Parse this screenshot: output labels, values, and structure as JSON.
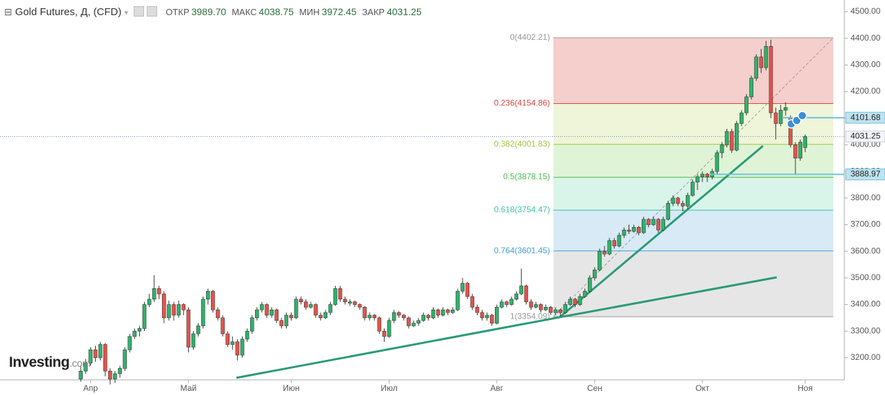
{
  "header": {
    "title": "Gold Futures, Д, (CFD)",
    "ohlc": [
      {
        "name": "ОТКР",
        "value": "3989.70"
      },
      {
        "name": "МАКС",
        "value": "4038.75"
      },
      {
        "name": "МИН",
        "value": "3972.45"
      },
      {
        "name": "ЗАКР",
        "value": "4031.25"
      }
    ]
  },
  "watermark": {
    "brand": "Investing",
    "suffix": ".com"
  },
  "chart_data": {
    "type": "candlestick",
    "ylim": [
      3117,
      4544
    ],
    "xlim": [
      -16.5,
      156
    ],
    "yticks": [
      {
        "value": 3200,
        "label": "3200.00"
      },
      {
        "value": 3300,
        "label": "3300.00"
      },
      {
        "value": 3400,
        "label": "3400.00"
      },
      {
        "value": 3500,
        "label": "3500.00"
      },
      {
        "value": 3600,
        "label": "3600.00"
      },
      {
        "value": 3700,
        "label": "3700.00"
      },
      {
        "value": 3800,
        "label": "3800.00"
      },
      {
        "value": 3900,
        "label": "3900.00"
      },
      {
        "value": 4000,
        "label": "4000.00"
      },
      {
        "value": 4100,
        "label": "4100.00"
      },
      {
        "value": 4200,
        "label": "4200.00"
      },
      {
        "value": 4300,
        "label": "4300.00"
      },
      {
        "value": 4400,
        "label": "4400.00"
      },
      {
        "value": 4500,
        "label": "4500.00"
      }
    ],
    "xticks": [
      {
        "value": 2,
        "label": "Апр"
      },
      {
        "value": 22,
        "label": "Май"
      },
      {
        "value": 43,
        "label": "Июн"
      },
      {
        "value": 63,
        "label": "Июл"
      },
      {
        "value": 85,
        "label": "Авг"
      },
      {
        "value": 105,
        "label": "Сен"
      },
      {
        "value": 127,
        "label": "Окт"
      },
      {
        "value": 148,
        "label": "Ноя"
      }
    ],
    "up_color": "#2fb36b",
    "down_color": "#e5534b",
    "candles": [
      [
        3120,
        3170,
        3110,
        3150
      ],
      [
        3150,
        3195,
        3140,
        3180
      ],
      [
        3180,
        3240,
        3170,
        3230
      ],
      [
        3230,
        3245,
        3185,
        3200
      ],
      [
        3200,
        3260,
        3190,
        3250
      ],
      [
        3250,
        3255,
        3130,
        3150
      ],
      [
        3150,
        3160,
        3100,
        3120
      ],
      [
        3120,
        3150,
        3105,
        3140
      ],
      [
        3140,
        3170,
        3125,
        3160
      ],
      [
        3160,
        3240,
        3150,
        3230
      ],
      [
        3230,
        3290,
        3220,
        3280
      ],
      [
        3280,
        3310,
        3270,
        3300
      ],
      [
        3300,
        3320,
        3280,
        3310
      ],
      [
        3310,
        3410,
        3300,
        3400
      ],
      [
        3400,
        3440,
        3390,
        3420
      ],
      [
        3420,
        3510,
        3410,
        3460
      ],
      [
        3460,
        3470,
        3420,
        3440
      ],
      [
        3440,
        3450,
        3330,
        3350
      ],
      [
        3350,
        3415,
        3340,
        3400
      ],
      [
        3400,
        3410,
        3340,
        3360
      ],
      [
        3360,
        3415,
        3350,
        3400
      ],
      [
        3400,
        3405,
        3360,
        3380
      ],
      [
        3380,
        3390,
        3220,
        3240
      ],
      [
        3240,
        3300,
        3230,
        3290
      ],
      [
        3290,
        3330,
        3280,
        3320
      ],
      [
        3320,
        3430,
        3310,
        3420
      ],
      [
        3420,
        3460,
        3400,
        3450
      ],
      [
        3450,
        3455,
        3370,
        3380
      ],
      [
        3380,
        3390,
        3340,
        3350
      ],
      [
        3350,
        3360,
        3280,
        3290
      ],
      [
        3290,
        3300,
        3240,
        3250
      ],
      [
        3250,
        3280,
        3230,
        3260
      ],
      [
        3260,
        3270,
        3190,
        3210
      ],
      [
        3210,
        3280,
        3200,
        3270
      ],
      [
        3270,
        3310,
        3260,
        3300
      ],
      [
        3300,
        3360,
        3290,
        3350
      ],
      [
        3350,
        3390,
        3340,
        3380
      ],
      [
        3380,
        3410,
        3370,
        3400
      ],
      [
        3400,
        3405,
        3350,
        3360
      ],
      [
        3360,
        3390,
        3350,
        3380
      ],
      [
        3380,
        3385,
        3330,
        3340
      ],
      [
        3340,
        3350,
        3310,
        3320
      ],
      [
        3320,
        3370,
        3310,
        3360
      ],
      [
        3360,
        3370,
        3340,
        3350
      ],
      [
        3350,
        3430,
        3345,
        3420
      ],
      [
        3420,
        3430,
        3400,
        3410
      ],
      [
        3410,
        3420,
        3380,
        3390
      ],
      [
        3390,
        3410,
        3385,
        3400
      ],
      [
        3400,
        3405,
        3350,
        3360
      ],
      [
        3360,
        3370,
        3340,
        3350
      ],
      [
        3350,
        3380,
        3345,
        3370
      ],
      [
        3370,
        3410,
        3360,
        3400
      ],
      [
        3400,
        3470,
        3395,
        3460
      ],
      [
        3460,
        3470,
        3410,
        3420
      ],
      [
        3420,
        3430,
        3400,
        3410
      ],
      [
        3405,
        3420,
        3395,
        3410
      ],
      [
        3410,
        3415,
        3390,
        3400
      ],
      [
        3400,
        3405,
        3380,
        3390
      ],
      [
        3390,
        3395,
        3340,
        3350
      ],
      [
        3350,
        3370,
        3340,
        3360
      ],
      [
        3360,
        3365,
        3340,
        3350
      ],
      [
        3350,
        3355,
        3290,
        3300
      ],
      [
        3300,
        3310,
        3260,
        3280
      ],
      [
        3280,
        3350,
        3275,
        3340
      ],
      [
        3340,
        3380,
        3330,
        3370
      ],
      [
        3370,
        3375,
        3350,
        3360
      ],
      [
        3360,
        3365,
        3340,
        3350
      ],
      [
        3350,
        3355,
        3310,
        3320
      ],
      [
        3320,
        3340,
        3315,
        3330
      ],
      [
        3330,
        3350,
        3320,
        3340
      ],
      [
        3340,
        3370,
        3335,
        3360
      ],
      [
        3360,
        3365,
        3340,
        3350
      ],
      [
        3350,
        3390,
        3345,
        3380
      ],
      [
        3380,
        3385,
        3350,
        3360
      ],
      [
        3360,
        3390,
        3355,
        3380
      ],
      [
        3380,
        3385,
        3360,
        3370
      ],
      [
        3370,
        3390,
        3365,
        3380
      ],
      [
        3380,
        3460,
        3375,
        3450
      ],
      [
        3450,
        3500,
        3440,
        3480
      ],
      [
        3480,
        3485,
        3420,
        3430
      ],
      [
        3430,
        3440,
        3380,
        3390
      ],
      [
        3390,
        3400,
        3360,
        3370
      ],
      [
        3370,
        3380,
        3340,
        3350
      ],
      [
        3350,
        3370,
        3340,
        3360
      ],
      [
        3360,
        3365,
        3320,
        3330
      ],
      [
        3330,
        3400,
        3325,
        3390
      ],
      [
        3390,
        3420,
        3385,
        3410
      ],
      [
        3410,
        3415,
        3390,
        3400
      ],
      [
        3400,
        3430,
        3395,
        3420
      ],
      [
        3420,
        3450,
        3415,
        3440
      ],
      [
        3440,
        3535,
        3435,
        3470
      ],
      [
        3470,
        3475,
        3400,
        3410
      ],
      [
        3410,
        3420,
        3380,
        3390
      ],
      [
        3390,
        3410,
        3385,
        3400
      ],
      [
        3400,
        3405,
        3370,
        3380
      ],
      [
        3380,
        3400,
        3375,
        3390
      ],
      [
        3390,
        3395,
        3360,
        3370
      ],
      [
        3370,
        3390,
        3360,
        3380
      ],
      [
        3380,
        3385,
        3355,
        3370
      ],
      [
        3370,
        3410,
        3365,
        3400
      ],
      [
        3400,
        3430,
        3395,
        3420
      ],
      [
        3420,
        3425,
        3390,
        3400
      ],
      [
        3400,
        3440,
        3395,
        3430
      ],
      [
        3430,
        3460,
        3425,
        3450
      ],
      [
        3450,
        3510,
        3445,
        3500
      ],
      [
        3500,
        3540,
        3490,
        3530
      ],
      [
        3530,
        3610,
        3525,
        3600
      ],
      [
        3600,
        3620,
        3580,
        3590
      ],
      [
        3590,
        3650,
        3585,
        3640
      ],
      [
        3640,
        3650,
        3610,
        3620
      ],
      [
        3620,
        3670,
        3615,
        3660
      ],
      [
        3660,
        3690,
        3650,
        3680
      ],
      [
        3680,
        3700,
        3665,
        3675
      ],
      [
        3675,
        3700,
        3670,
        3690
      ],
      [
        3690,
        3695,
        3660,
        3670
      ],
      [
        3670,
        3730,
        3665,
        3720
      ],
      [
        3720,
        3725,
        3690,
        3700
      ],
      [
        3700,
        3730,
        3695,
        3720
      ],
      [
        3720,
        3725,
        3670,
        3680
      ],
      [
        3680,
        3730,
        3675,
        3720
      ],
      [
        3720,
        3790,
        3715,
        3780
      ],
      [
        3780,
        3810,
        3770,
        3800
      ],
      [
        3800,
        3805,
        3770,
        3780
      ],
      [
        3780,
        3790,
        3750,
        3770
      ],
      [
        3770,
        3820,
        3760,
        3810
      ],
      [
        3810,
        3870,
        3805,
        3860
      ],
      [
        3860,
        3890,
        3830,
        3880
      ],
      [
        3880,
        3900,
        3860,
        3890
      ],
      [
        3890,
        3895,
        3860,
        3880
      ],
      [
        3880,
        3910,
        3870,
        3900
      ],
      [
        3900,
        3980,
        3890,
        3970
      ],
      [
        3970,
        4010,
        3950,
        4000
      ],
      [
        4000,
        4060,
        3990,
        4050
      ],
      [
        4050,
        4060,
        3970,
        3980
      ],
      [
        3980,
        4090,
        3975,
        4080
      ],
      [
        4080,
        4130,
        4070,
        4120
      ],
      [
        4120,
        4190,
        4110,
        4180
      ],
      [
        4180,
        4260,
        4170,
        4250
      ],
      [
        4250,
        4340,
        4240,
        4330
      ],
      [
        4330,
        4360,
        4270,
        4290
      ],
      [
        4290,
        4390,
        4280,
        4370
      ],
      [
        4370,
        4395,
        4100,
        4120
      ],
      [
        4120,
        4140,
        4020,
        4080
      ],
      [
        4080,
        4150,
        4070,
        4130
      ],
      [
        4130,
        4160,
        4110,
        4140
      ],
      [
        4100,
        4110,
        3990,
        4000
      ],
      [
        4000,
        4010,
        3890,
        3950
      ],
      [
        3950,
        4020,
        3940,
        4010
      ],
      [
        3989.7,
        4038.75,
        3972.45,
        4031.25
      ]
    ],
    "fib_levels": [
      {
        "label": "0(4402.21)",
        "value": 4402.21,
        "color": "#999999",
        "fill": "#f4cfcc"
      },
      {
        "label": "0.236(4154.86)",
        "value": 4154.86,
        "color": "#d9463e",
        "fill": "#eef5d8"
      },
      {
        "label": "0.382(4001.83)",
        "value": 4001.83,
        "color": "#9cc43a",
        "fill": "#dff4d6"
      },
      {
        "label": "0.5(3878.15)",
        "value": 3878.15,
        "color": "#4cb84c",
        "fill": "#d9f4e9"
      },
      {
        "label": "0.618(3754.47)",
        "value": 3754.47,
        "color": "#3cc4a4",
        "fill": "#d7eaf5"
      },
      {
        "label": "0.764(3601.45)",
        "value": 3601.45,
        "color": "#42a0d4",
        "fill": "#e6e6e6"
      },
      {
        "label": "1(3354.09)",
        "value": 3354.09,
        "color": "#999999"
      }
    ],
    "price_lines": [
      {
        "value": 4101.68,
        "label": "4101.68",
        "color": "#6cc3de"
      },
      {
        "value": 3888.97,
        "label": "3888.97",
        "color": "#6cc3de"
      }
    ],
    "last_price": {
      "value": 4031.25,
      "label": "4031.25",
      "color": "#5a7fb0"
    }
  }
}
